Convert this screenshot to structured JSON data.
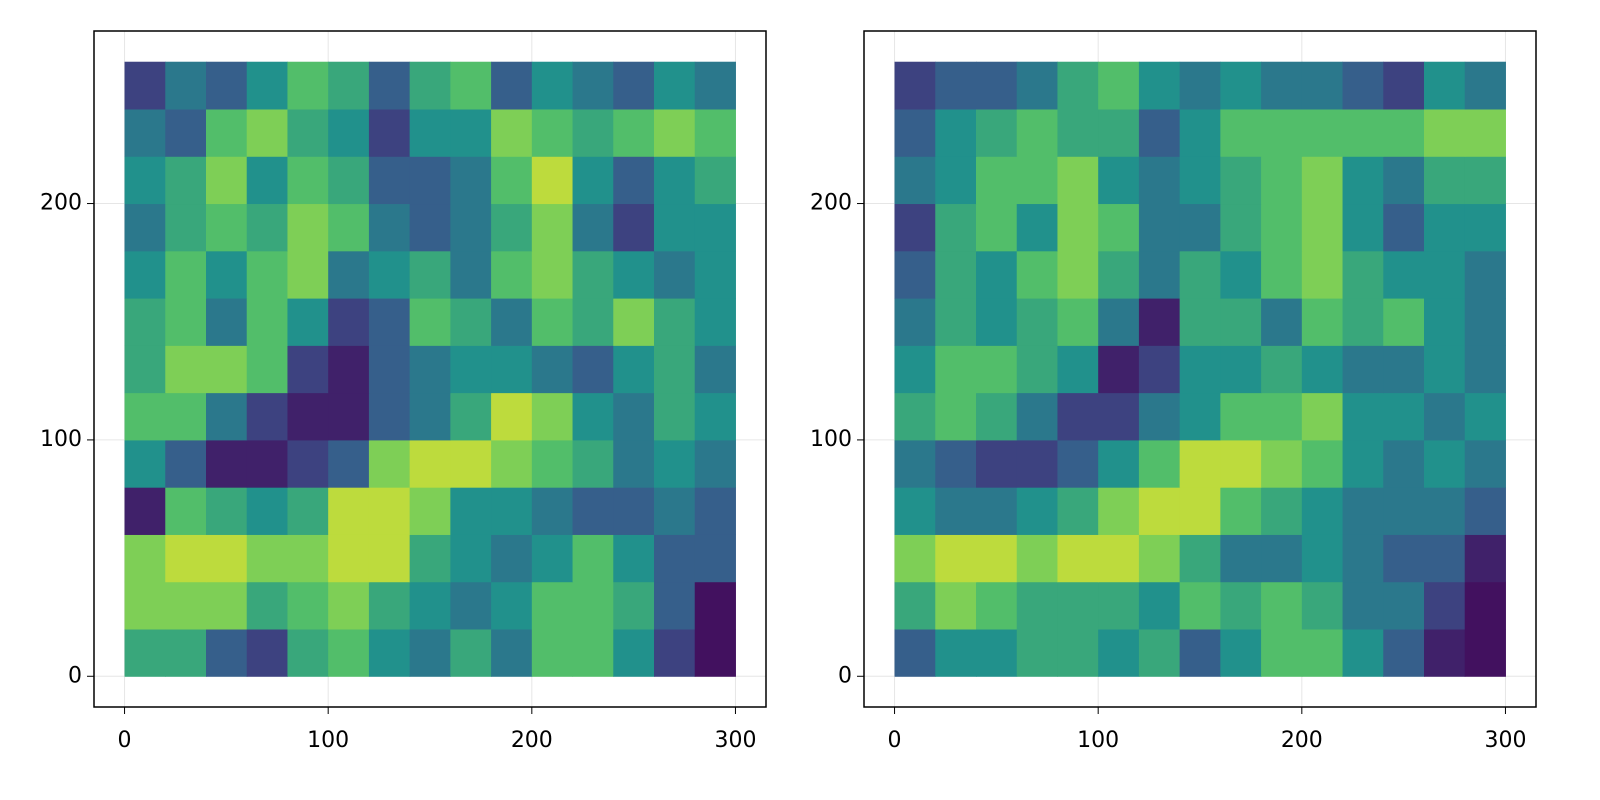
{
  "chart_data": [
    {
      "type": "heatmap",
      "colormap": [
        "#440154",
        "#3b528b",
        "#21918c",
        "#5ec962",
        "#fde725"
      ],
      "grid": true,
      "xlim": [
        -15,
        315
      ],
      "ylim": [
        -13,
        273
      ],
      "xticks": [
        0,
        100,
        200,
        300
      ],
      "yticks": [
        0,
        100,
        200
      ],
      "x_edges": [
        0,
        20,
        40,
        60,
        80,
        100,
        120,
        140,
        160,
        180,
        200,
        220,
        240,
        260,
        280,
        300
      ],
      "y_edges": [
        0,
        20,
        40,
        60,
        80,
        100,
        120,
        140,
        160,
        180,
        200,
        220,
        240,
        260
      ],
      "values": [
        [
          0.6,
          0.6,
          0.3,
          0.2,
          0.6,
          0.7,
          0.5,
          0.4,
          0.6,
          0.4,
          0.7,
          0.7,
          0.5,
          0.2,
          0.05
        ],
        [
          0.8,
          0.8,
          0.8,
          0.6,
          0.7,
          0.8,
          0.6,
          0.5,
          0.4,
          0.5,
          0.7,
          0.7,
          0.6,
          0.3,
          0.05
        ],
        [
          0.8,
          0.9,
          0.9,
          0.8,
          0.8,
          0.9,
          0.9,
          0.6,
          0.5,
          0.4,
          0.5,
          0.7,
          0.5,
          0.3,
          0.3
        ],
        [
          0.1,
          0.7,
          0.6,
          0.5,
          0.6,
          0.9,
          0.9,
          0.8,
          0.5,
          0.5,
          0.4,
          0.3,
          0.3,
          0.4,
          0.3
        ],
        [
          0.5,
          0.3,
          0.1,
          0.1,
          0.2,
          0.3,
          0.8,
          0.9,
          0.9,
          0.8,
          0.7,
          0.6,
          0.4,
          0.5,
          0.4
        ],
        [
          0.7,
          0.7,
          0.4,
          0.2,
          0.1,
          0.1,
          0.3,
          0.4,
          0.6,
          0.9,
          0.8,
          0.5,
          0.4,
          0.6,
          0.5
        ],
        [
          0.6,
          0.8,
          0.8,
          0.7,
          0.2,
          0.1,
          0.3,
          0.4,
          0.5,
          0.5,
          0.4,
          0.3,
          0.5,
          0.6,
          0.4
        ],
        [
          0.6,
          0.7,
          0.4,
          0.7,
          0.5,
          0.2,
          0.3,
          0.7,
          0.6,
          0.4,
          0.7,
          0.6,
          0.8,
          0.6,
          0.5
        ],
        [
          0.5,
          0.7,
          0.5,
          0.7,
          0.8,
          0.4,
          0.5,
          0.6,
          0.4,
          0.7,
          0.8,
          0.6,
          0.5,
          0.4,
          0.5
        ],
        [
          0.4,
          0.6,
          0.7,
          0.6,
          0.8,
          0.7,
          0.4,
          0.3,
          0.4,
          0.6,
          0.8,
          0.4,
          0.2,
          0.5,
          0.5
        ],
        [
          0.5,
          0.6,
          0.8,
          0.5,
          0.7,
          0.6,
          0.3,
          0.3,
          0.4,
          0.7,
          0.9,
          0.5,
          0.3,
          0.5,
          0.6
        ],
        [
          0.4,
          0.3,
          0.7,
          0.8,
          0.6,
          0.5,
          0.2,
          0.5,
          0.5,
          0.8,
          0.7,
          0.6,
          0.7,
          0.8,
          0.7
        ],
        [
          0.2,
          0.4,
          0.3,
          0.5,
          0.7,
          0.6,
          0.3,
          0.6,
          0.7,
          0.3,
          0.5,
          0.4,
          0.3,
          0.5,
          0.4
        ]
      ]
    },
    {
      "type": "heatmap",
      "colormap": [
        "#440154",
        "#3b528b",
        "#21918c",
        "#5ec962",
        "#fde725"
      ],
      "grid": true,
      "xlim": [
        -15,
        315
      ],
      "ylim": [
        -13,
        273
      ],
      "xticks": [
        0,
        100,
        200,
        300
      ],
      "yticks": [
        0,
        100,
        200
      ],
      "x_edges": [
        0,
        20,
        40,
        60,
        80,
        100,
        120,
        140,
        160,
        180,
        200,
        220,
        240,
        260,
        280,
        300
      ],
      "y_edges": [
        0,
        20,
        40,
        60,
        80,
        100,
        120,
        140,
        160,
        180,
        200,
        220,
        240,
        260
      ],
      "values": [
        [
          0.3,
          0.5,
          0.5,
          0.6,
          0.6,
          0.5,
          0.6,
          0.3,
          0.5,
          0.7,
          0.7,
          0.5,
          0.3,
          0.1,
          0.05
        ],
        [
          0.6,
          0.8,
          0.7,
          0.6,
          0.6,
          0.6,
          0.5,
          0.7,
          0.6,
          0.7,
          0.6,
          0.4,
          0.4,
          0.2,
          0.05
        ],
        [
          0.8,
          0.9,
          0.9,
          0.8,
          0.9,
          0.9,
          0.8,
          0.6,
          0.4,
          0.4,
          0.5,
          0.4,
          0.3,
          0.3,
          0.1
        ],
        [
          0.5,
          0.4,
          0.4,
          0.5,
          0.6,
          0.8,
          0.9,
          0.9,
          0.7,
          0.6,
          0.5,
          0.4,
          0.4,
          0.4,
          0.3
        ],
        [
          0.4,
          0.3,
          0.2,
          0.2,
          0.3,
          0.5,
          0.7,
          0.9,
          0.9,
          0.8,
          0.7,
          0.5,
          0.4,
          0.5,
          0.4
        ],
        [
          0.6,
          0.7,
          0.6,
          0.4,
          0.2,
          0.2,
          0.4,
          0.5,
          0.7,
          0.7,
          0.8,
          0.5,
          0.5,
          0.4,
          0.5
        ],
        [
          0.5,
          0.7,
          0.7,
          0.6,
          0.5,
          0.1,
          0.2,
          0.5,
          0.5,
          0.6,
          0.5,
          0.4,
          0.4,
          0.5,
          0.4
        ],
        [
          0.4,
          0.6,
          0.5,
          0.6,
          0.7,
          0.4,
          0.1,
          0.6,
          0.6,
          0.4,
          0.7,
          0.6,
          0.7,
          0.5,
          0.4
        ],
        [
          0.3,
          0.6,
          0.5,
          0.7,
          0.8,
          0.6,
          0.4,
          0.6,
          0.5,
          0.7,
          0.8,
          0.6,
          0.5,
          0.5,
          0.4
        ],
        [
          0.2,
          0.6,
          0.7,
          0.5,
          0.8,
          0.7,
          0.4,
          0.4,
          0.6,
          0.7,
          0.8,
          0.5,
          0.3,
          0.5,
          0.5
        ],
        [
          0.4,
          0.5,
          0.7,
          0.7,
          0.8,
          0.5,
          0.4,
          0.5,
          0.6,
          0.7,
          0.8,
          0.5,
          0.4,
          0.6,
          0.6
        ],
        [
          0.3,
          0.5,
          0.6,
          0.7,
          0.6,
          0.6,
          0.3,
          0.5,
          0.7,
          0.7,
          0.7,
          0.7,
          0.7,
          0.8,
          0.8
        ],
        [
          0.2,
          0.3,
          0.3,
          0.4,
          0.6,
          0.7,
          0.5,
          0.4,
          0.5,
          0.4,
          0.4,
          0.3,
          0.2,
          0.5,
          0.4
        ]
      ]
    }
  ]
}
